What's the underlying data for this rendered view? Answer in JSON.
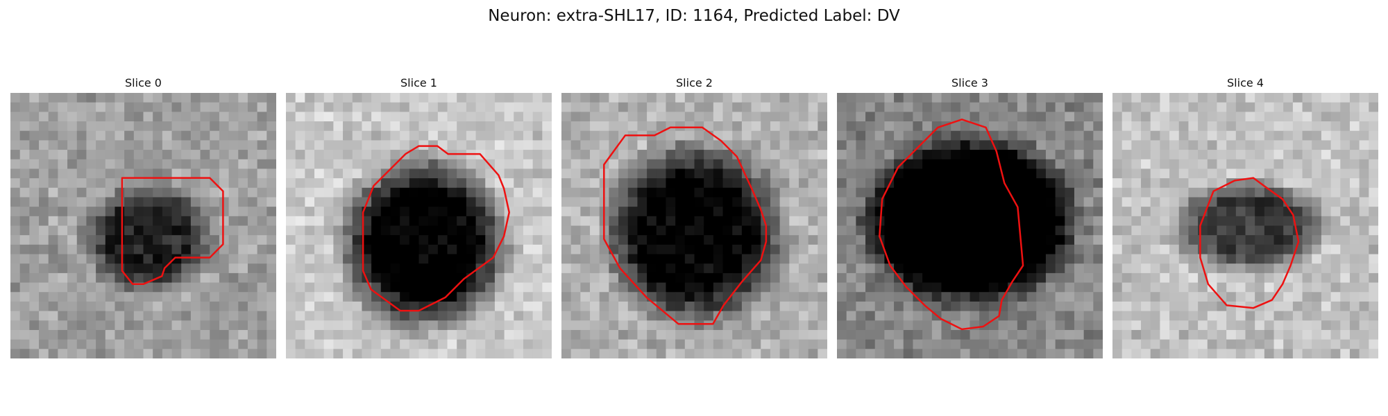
{
  "figure": {
    "title": "Neuron: extra-SHL17, ID: 1164, Predicted Label: DV"
  },
  "panels": [
    {
      "title": "Slice 0",
      "image": "grayscale microscopy patch with a faint dark blob and red outline"
    },
    {
      "title": "Slice 1",
      "image": "grayscale microscopy patch with a round dark nucleus and red outline"
    },
    {
      "title": "Slice 2",
      "image": "grayscale microscopy patch with a dark textured nucleus and red outline"
    },
    {
      "title": "Slice 3",
      "image": "grayscale microscopy patch with a large black nucleus and red outline"
    },
    {
      "title": "Slice 4",
      "image": "grayscale microscopy patch with a small dark blob and red outline"
    }
  ],
  "colors": {
    "contour": "#ee1111",
    "background": "#ffffff"
  }
}
